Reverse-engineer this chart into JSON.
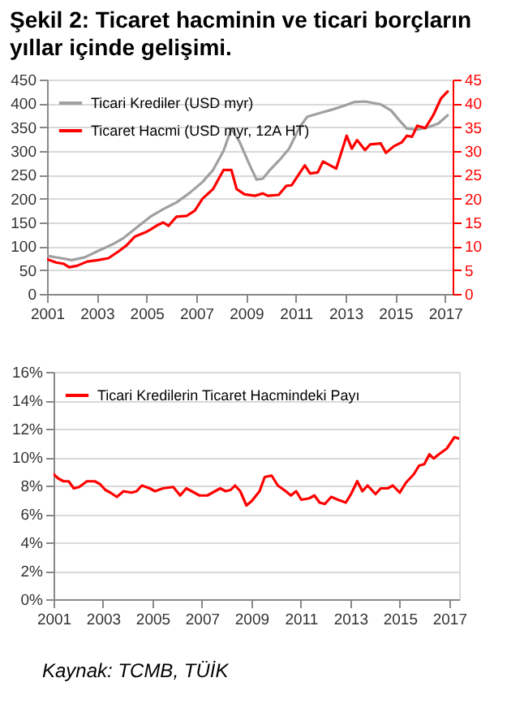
{
  "chart_data": [
    {
      "type": "line",
      "title": "Şekil 2: Ticaret hacminin ve ticari borçların yıllar içinde gelişimi.",
      "xlim": [
        2001,
        2017.3
      ],
      "xticks": [
        2001,
        2003,
        2005,
        2007,
        2009,
        2011,
        2013,
        2015,
        2017
      ],
      "ylim": [
        0,
        450
      ],
      "yticks": [
        0,
        50,
        100,
        150,
        200,
        250,
        300,
        350,
        400,
        450
      ],
      "y2lim": [
        0,
        45
      ],
      "y2ticks": [
        0,
        5,
        10,
        15,
        20,
        25,
        30,
        35,
        40,
        45
      ],
      "grid": "y",
      "legend": "top left",
      "series": [
        {
          "name": "Ticari Krediler (USD myr)",
          "color": "#a0a0a0",
          "x": [
            2001.0,
            2001.57,
            2001.99,
            2002.52,
            2003.04,
            2003.67,
            2004.09,
            2004.62,
            2005.15,
            2005.67,
            2006.2,
            2006.73,
            2007.25,
            2007.67,
            2008.09,
            2008.41,
            2008.73,
            2009.15,
            2009.42,
            2009.67,
            2009.99,
            2010.41,
            2010.73,
            2011.15,
            2011.46,
            2011.99,
            2012.52,
            2012.94,
            2013.36,
            2013.78,
            2014.41,
            2014.83,
            2015.15,
            2015.46,
            2015.88,
            2016.31,
            2016.73,
            2017.1
          ],
          "values": [
            80,
            75,
            71,
            77,
            90,
            105,
            118,
            140,
            162,
            178,
            192,
            212,
            235,
            260,
            300,
            347,
            320,
            270,
            240,
            242,
            262,
            285,
            305,
            350,
            372,
            380,
            388,
            395,
            403,
            404,
            398,
            385,
            365,
            347,
            345,
            350,
            358,
            375
          ]
        },
        {
          "name": "Ticaret Hacmi (USD myr, 12A HT)",
          "color": "#ff0000",
          "axis": "y2",
          "x": [
            2001.0,
            2001.36,
            2001.68,
            2001.89,
            2002.2,
            2002.62,
            2003.04,
            2003.47,
            2003.89,
            2004.2,
            2004.52,
            2004.94,
            2005.15,
            2005.46,
            2005.67,
            2005.88,
            2006.2,
            2006.62,
            2006.94,
            2007.25,
            2007.67,
            2008.09,
            2008.41,
            2008.62,
            2008.94,
            2009.36,
            2009.67,
            2009.88,
            2010.31,
            2010.62,
            2010.83,
            2011.36,
            2011.57,
            2011.88,
            2012.09,
            2012.62,
            2013.04,
            2013.25,
            2013.46,
            2013.78,
            2013.99,
            2014.41,
            2014.62,
            2014.94,
            2015.25,
            2015.46,
            2015.67,
            2015.88,
            2016.2,
            2016.52,
            2016.83,
            2017.1
          ],
          "values": [
            7.3,
            6.6,
            6.3,
            5.6,
            5.9,
            6.8,
            7.1,
            7.5,
            9.0,
            10.2,
            12.0,
            12.9,
            13.5,
            14.5,
            15.0,
            14.3,
            16.2,
            16.4,
            17.5,
            20.0,
            22.0,
            26.0,
            26.0,
            22.0,
            20.9,
            20.6,
            21.1,
            20.6,
            20.8,
            22.7,
            22.8,
            27.0,
            25.3,
            25.5,
            27.8,
            26.3,
            33.2,
            30.5,
            32.3,
            30.2,
            31.4,
            31.6,
            29.6,
            31.0,
            31.8,
            33.2,
            33.0,
            35.3,
            34.8,
            37.5,
            41.0,
            42.5
          ]
        }
      ]
    },
    {
      "type": "line",
      "xlim": [
        2001,
        2017.4
      ],
      "xticks": [
        2001,
        2003,
        2005,
        2007,
        2009,
        2011,
        2013,
        2015,
        2017
      ],
      "ylim": [
        0,
        16
      ],
      "yticks": [
        {
          "value": 0,
          "label": "0%"
        },
        {
          "value": 2,
          "label": "2%"
        },
        {
          "value": 4,
          "label": "4%"
        },
        {
          "value": 6,
          "label": "6%"
        },
        {
          "value": 8,
          "label": "8%"
        },
        {
          "value": 10,
          "label": "10%"
        },
        {
          "value": 12,
          "label": "12%"
        },
        {
          "value": 14,
          "label": "14%"
        },
        {
          "value": 16,
          "label": "16%"
        }
      ],
      "grid": "y",
      "legend": "top left",
      "annotations": [
        "Kaynak: TCMB, TÜİK"
      ],
      "series": [
        {
          "name": "Ticari Kredilerin Ticaret Hacmindeki Payı",
          "color": "#ff0000",
          "x": [
            2001.0,
            2001.19,
            2001.4,
            2001.61,
            2001.82,
            2002.04,
            2002.35,
            2002.67,
            2002.88,
            2003.09,
            2003.3,
            2003.56,
            2003.83,
            2004.15,
            2004.36,
            2004.57,
            2004.89,
            2005.1,
            2005.42,
            2005.84,
            2006.12,
            2006.37,
            2006.69,
            2006.9,
            2007.22,
            2007.53,
            2007.74,
            2007.96,
            2008.17,
            2008.34,
            2008.55,
            2008.8,
            2009.01,
            2009.33,
            2009.54,
            2009.82,
            2010.07,
            2010.39,
            2010.6,
            2010.81,
            2011.02,
            2011.34,
            2011.55,
            2011.76,
            2011.97,
            2012.23,
            2012.5,
            2012.82,
            2013.03,
            2013.28,
            2013.49,
            2013.7,
            2014.02,
            2014.23,
            2014.51,
            2014.72,
            2015.0,
            2015.25,
            2015.57,
            2015.78,
            2015.99,
            2016.2,
            2016.37,
            2016.58,
            2016.9,
            2017.21,
            2017.4
          ],
          "values": [
            8.8,
            8.5,
            8.3,
            8.3,
            7.8,
            7.9,
            8.3,
            8.3,
            8.1,
            7.7,
            7.5,
            7.2,
            7.6,
            7.5,
            7.6,
            8.0,
            7.8,
            7.6,
            7.8,
            7.9,
            7.3,
            7.8,
            7.5,
            7.3,
            7.3,
            7.6,
            7.8,
            7.6,
            7.7,
            8.0,
            7.6,
            6.6,
            6.9,
            7.6,
            8.6,
            8.7,
            8.0,
            7.6,
            7.3,
            7.6,
            7.0,
            7.1,
            7.3,
            6.8,
            6.7,
            7.2,
            7.0,
            6.8,
            7.4,
            8.3,
            7.6,
            8.0,
            7.4,
            7.8,
            7.8,
            8.0,
            7.5,
            8.2,
            8.8,
            9.4,
            9.5,
            10.2,
            9.9,
            10.2,
            10.6,
            11.4,
            11.3
          ]
        }
      ]
    }
  ]
}
